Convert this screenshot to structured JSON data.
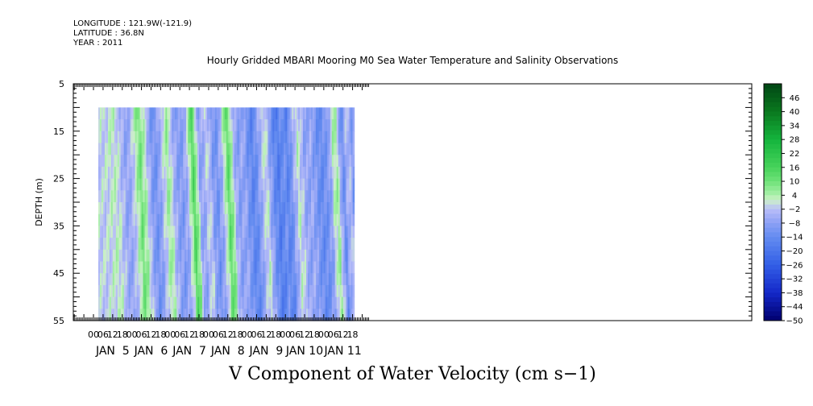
{
  "header": {
    "longitude": "LONGITUDE : 121.9W(-121.9)",
    "latitude": "LATITUDE : 36.8N",
    "year": "YEAR : 2011"
  },
  "chart_data": {
    "type": "heatmap",
    "title": "Hourly Gridded MBARI Mooring M0 Sea Water Temperature and Salinity Observations",
    "xlabel": "V Component of Water Velocity (cm s−1)",
    "ylabel": "DEPTH (m)",
    "ylim": [
      5,
      55
    ],
    "y_ticks": [
      "5",
      "15",
      "25",
      "35",
      "45",
      "55"
    ],
    "x_hour_labels": [
      "00",
      "06",
      "12",
      "18",
      "00",
      "06",
      "12",
      "18",
      "00",
      "06",
      "12",
      "18",
      "00",
      "06",
      "12",
      "18",
      "00",
      "06",
      "12",
      "18",
      "00",
      "06",
      "12",
      "18",
      "00",
      "06",
      "12",
      "18"
    ],
    "day_labels": [
      "JAN  5",
      "JAN  6",
      "JAN  7",
      "JAN  8",
      "JAN  9",
      "JAN 10",
      "JAN 11"
    ],
    "colorbar_labels": [
      "46",
      "40",
      "34",
      "28",
      "22",
      "16",
      "10",
      "4",
      "−2",
      "−8",
      "−14",
      "−20",
      "−26",
      "−32",
      "−38",
      "−44",
      "−50"
    ],
    "colorbar_range": [
      -50,
      52
    ],
    "data_depth_range": [
      10,
      55
    ],
    "data_time_range_hours": [
      3,
      163
    ],
    "time_profile": [
      [
        3,
        -1
      ],
      [
        7,
        0
      ],
      [
        10,
        2
      ],
      [
        13,
        1
      ],
      [
        16,
        -4
      ],
      [
        19,
        -8
      ],
      [
        22,
        -4
      ],
      [
        25,
        3
      ],
      [
        27,
        10
      ],
      [
        30,
        4
      ],
      [
        33,
        -6
      ],
      [
        36,
        -12
      ],
      [
        39,
        -9
      ],
      [
        41,
        -3
      ],
      [
        43,
        2
      ],
      [
        45,
        6
      ],
      [
        47,
        -2
      ],
      [
        50,
        -8
      ],
      [
        53,
        -10
      ],
      [
        56,
        -6
      ],
      [
        58,
        2
      ],
      [
        60,
        14
      ],
      [
        62,
        8
      ],
      [
        64,
        -6
      ],
      [
        66,
        -8
      ],
      [
        68,
        -3
      ],
      [
        70,
        0
      ],
      [
        72,
        -8
      ],
      [
        75,
        -12
      ],
      [
        78,
        -6
      ],
      [
        80,
        2
      ],
      [
        82,
        12
      ],
      [
        84,
        8
      ],
      [
        86,
        -4
      ],
      [
        89,
        -9
      ],
      [
        92,
        -6
      ],
      [
        95,
        -12
      ],
      [
        98,
        -16
      ],
      [
        101,
        -10
      ],
      [
        104,
        -2
      ],
      [
        106,
        2
      ],
      [
        108,
        -6
      ],
      [
        111,
        -14
      ],
      [
        114,
        -18
      ],
      [
        117,
        -12
      ],
      [
        120,
        -16
      ],
      [
        122,
        -10
      ],
      [
        124,
        -4
      ],
      [
        126,
        2
      ],
      [
        128,
        -2
      ],
      [
        131,
        -8
      ],
      [
        134,
        -6
      ],
      [
        137,
        -10
      ],
      [
        140,
        -14
      ],
      [
        143,
        -12
      ],
      [
        146,
        -8
      ],
      [
        148,
        2
      ],
      [
        150,
        6
      ],
      [
        152,
        -4
      ],
      [
        154,
        -14
      ],
      [
        156,
        -6
      ],
      [
        158,
        -2
      ],
      [
        160,
        -10
      ],
      [
        163,
        -4
      ]
    ]
  }
}
